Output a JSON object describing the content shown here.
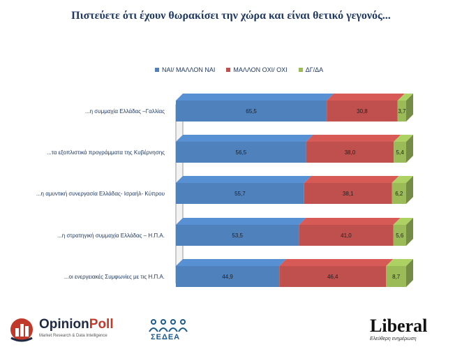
{
  "title": "Πιστεύετε ότι έχουν θωρακίσει την χώρα και είναι θετικό γεγονός...",
  "colors": {
    "yes": "#4f81bd",
    "no": "#c0504d",
    "dk": "#9bbb59"
  },
  "chart_data": {
    "type": "bar",
    "orientation": "horizontal",
    "stacked": true,
    "categories": [
      "...η συμμαχία Ελλάδας –Γαλλίας",
      "...τα εξοπλιστικά προγράμματα της Κυβέρνησης",
      "...η αμυντική συνεργασία Ελλάδας- Ισραήλ- Κύπρου",
      "...η στρατηγική συμμαχία Ελλάδας – Η.Π.Α.",
      "...οι ενεργειακές Συμφωνίες με τις Η.Π.Α."
    ],
    "series": [
      {
        "name": "ΝΑΙ/ ΜΑΛΛΟΝ ΝΑΙ",
        "values": [
          65.5,
          56.5,
          55.7,
          53.5,
          44.9
        ],
        "labels": [
          "65,5",
          "56,5",
          "55,7",
          "53,5",
          "44,9"
        ]
      },
      {
        "name": "ΜΑΛΛΟΝ ΟΧΙ/ ΟΧΙ",
        "values": [
          30.8,
          38.0,
          38.1,
          41.0,
          46.4
        ],
        "labels": [
          "30,8",
          "38,0",
          "38,1",
          "41,0",
          "46,4"
        ]
      },
      {
        "name": "ΔΓ/ΔΑ",
        "values": [
          3.7,
          5.4,
          6.2,
          5.6,
          8.7
        ],
        "labels": [
          "3,7",
          "5,4",
          "6,2",
          "5,6",
          "8,7"
        ]
      }
    ],
    "xlim": [
      0,
      100
    ],
    "legend": "top",
    "grid": false
  },
  "logos": {
    "opinionpoll": {
      "name_a": "Opinion",
      "name_b": "Poll",
      "tagline": "Market Research & Data Intelligence"
    },
    "sedea": {
      "name": "ΣΕΔΕΑ"
    },
    "liberal": {
      "name": "Liberal",
      "tagline": "Ελεύθερη ενημέρωση"
    }
  }
}
